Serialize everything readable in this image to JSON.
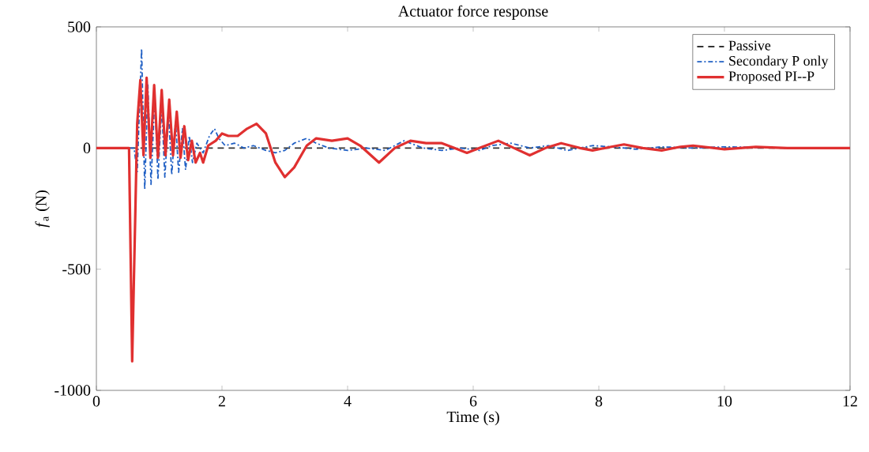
{
  "chart_data": {
    "type": "line",
    "title": "Actuator force response",
    "xlabel": "Time (s)",
    "ylabel": "*f*$_{a}$ (N)",
    "xlim": [
      0,
      12
    ],
    "xticks": [
      0,
      2,
      4,
      6,
      8,
      10,
      12
    ],
    "ylim": [
      -1000,
      500
    ],
    "yticks": [
      -1000,
      -500,
      0,
      500
    ],
    "grid": false,
    "legend": "top right",
    "series": [
      {
        "name": "Passive",
        "color": "#333333",
        "line_style": "dashed",
        "x": [
          0,
          12
        ],
        "values": [
          0,
          0
        ]
      },
      {
        "name": "Secondary P only",
        "color": "#1f5fc4",
        "line_style": "dashdot",
        "x": [
          0,
          0.6,
          0.65,
          0.72,
          0.77,
          0.82,
          0.87,
          0.93,
          0.98,
          1.04,
          1.09,
          1.15,
          1.2,
          1.26,
          1.31,
          1.37,
          1.42,
          1.48,
          1.53,
          1.6,
          1.7,
          1.8,
          1.88,
          1.95,
          2.05,
          2.2,
          2.35,
          2.5,
          2.7,
          2.85,
          3.0,
          3.15,
          3.35,
          3.5,
          3.7,
          4.0,
          4.3,
          4.6,
          4.9,
          5.2,
          5.5,
          5.8,
          6.1,
          6.3,
          6.6,
          6.9,
          7.2,
          7.5,
          7.9,
          8.2,
          8.6,
          9.0,
          9.5,
          10,
          11,
          12
        ],
        "values": [
          0,
          0,
          -100,
          410,
          -170,
          260,
          -150,
          220,
          -130,
          180,
          -120,
          140,
          -110,
          110,
          -100,
          80,
          -90,
          50,
          -60,
          20,
          -20,
          50,
          80,
          40,
          10,
          20,
          0,
          10,
          -10,
          -20,
          -10,
          20,
          40,
          20,
          0,
          -10,
          0,
          -10,
          30,
          0,
          -10,
          0,
          -10,
          10,
          20,
          0,
          10,
          -10,
          10,
          5,
          -5,
          5,
          0,
          5,
          0,
          0
        ]
      },
      {
        "name": "Proposed PI--P",
        "color": "#e03030",
        "line_style": "solid",
        "x": [
          0,
          0.52,
          0.57,
          0.65,
          0.7,
          0.75,
          0.8,
          0.86,
          0.92,
          0.98,
          1.04,
          1.1,
          1.16,
          1.22,
          1.28,
          1.34,
          1.4,
          1.46,
          1.52,
          1.58,
          1.65,
          1.7,
          1.78,
          1.9,
          2.0,
          2.1,
          2.25,
          2.4,
          2.55,
          2.7,
          2.85,
          3.0,
          3.15,
          3.35,
          3.5,
          3.75,
          4.0,
          4.2,
          4.5,
          4.75,
          5.0,
          5.25,
          5.5,
          5.7,
          5.9,
          6.1,
          6.4,
          6.65,
          6.9,
          7.15,
          7.4,
          7.7,
          7.9,
          8.2,
          8.4,
          8.7,
          9.0,
          9.3,
          9.5,
          10,
          10.5,
          11,
          12
        ],
        "values": [
          0,
          0,
          -880,
          100,
          280,
          -30,
          290,
          -40,
          260,
          -40,
          240,
          -30,
          200,
          -30,
          150,
          -40,
          90,
          -50,
          30,
          -60,
          -20,
          -60,
          10,
          30,
          60,
          50,
          50,
          80,
          100,
          60,
          -60,
          -120,
          -80,
          10,
          40,
          30,
          40,
          10,
          -60,
          0,
          30,
          20,
          20,
          0,
          -20,
          0,
          30,
          0,
          -30,
          0,
          20,
          0,
          -10,
          5,
          15,
          0,
          -10,
          5,
          10,
          -5,
          5,
          0,
          0
        ]
      }
    ]
  }
}
